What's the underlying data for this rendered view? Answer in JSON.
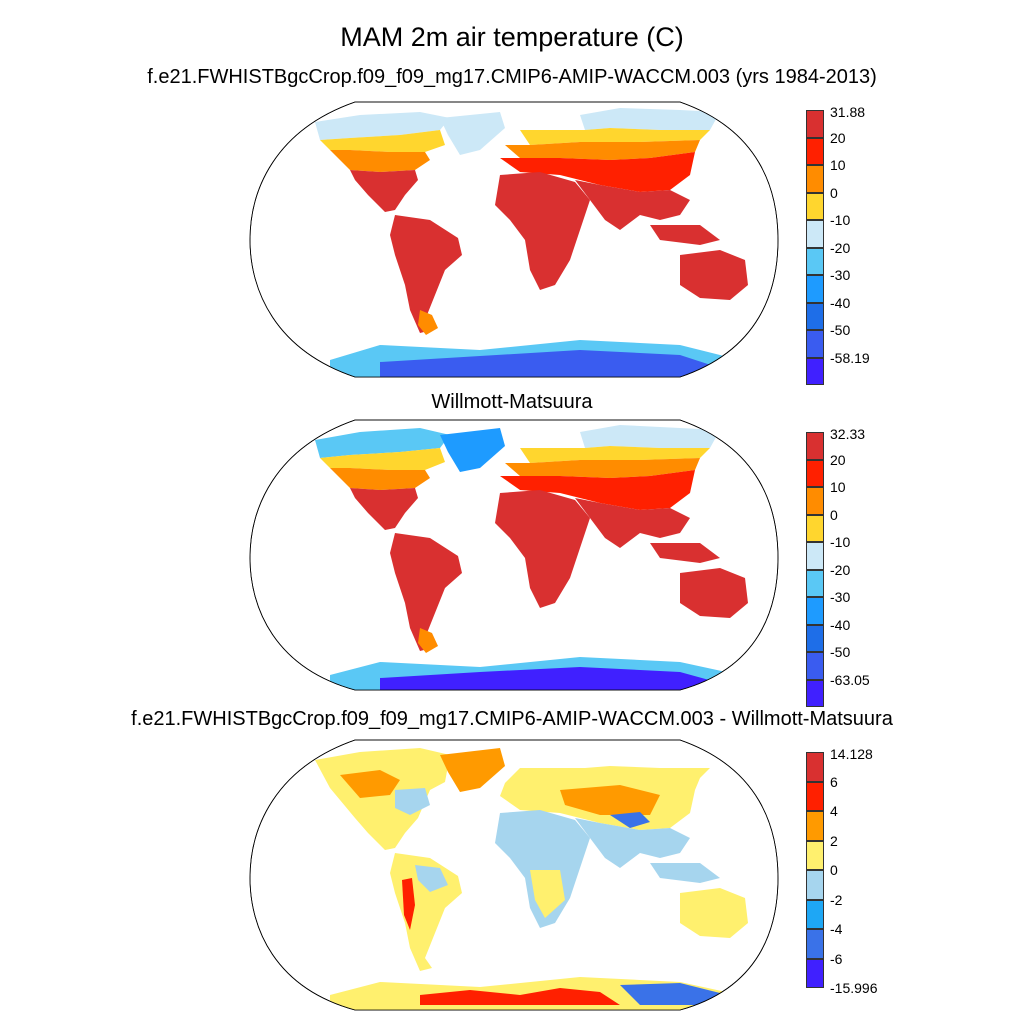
{
  "figure": {
    "title": "MAM 2m air temperature (C)"
  },
  "panels": [
    {
      "title": "f.e21.FWHISTBgcCrop.f09_f09_mg17.CMIP6-AMIP-WACCM.003 (yrs 1984-2013)",
      "colorbar": {
        "labels": [
          "31.88",
          "20",
          "10",
          "0",
          "-10",
          "-20",
          "-30",
          "-40",
          "-50",
          "-58.19"
        ],
        "colors": [
          "#d93030",
          "#ff2000",
          "#ff8c00",
          "#ffd62e",
          "#cce8f7",
          "#5ac8f5",
          "#1e9bff",
          "#1e6ee8",
          "#3a5cf0",
          "#4020ff"
        ]
      }
    },
    {
      "title": "Willmott-Matsuura",
      "colorbar": {
        "labels": [
          "32.33",
          "20",
          "10",
          "0",
          "-10",
          "-20",
          "-30",
          "-40",
          "-50",
          "-63.05"
        ],
        "colors": [
          "#d93030",
          "#ff2000",
          "#ff8c00",
          "#ffd62e",
          "#cce8f7",
          "#5ac8f5",
          "#1e9bff",
          "#1e6ee8",
          "#3a5cf0",
          "#4020ff"
        ]
      }
    },
    {
      "title": "f.e21.FWHISTBgcCrop.f09_f09_mg17.CMIP6-AMIP-WACCM.003 - Willmott-Matsuura",
      "colorbar": {
        "labels": [
          "14.128",
          "6",
          "4",
          "2",
          "0",
          "-2",
          "-4",
          "-6",
          "-15.996"
        ],
        "colors": [
          "#d93030",
          "#ff2000",
          "#ff9a00",
          "#fff06e",
          "#a6d5ee",
          "#1ea7f5",
          "#3a72e8",
          "#4020ff"
        ]
      }
    }
  ]
}
